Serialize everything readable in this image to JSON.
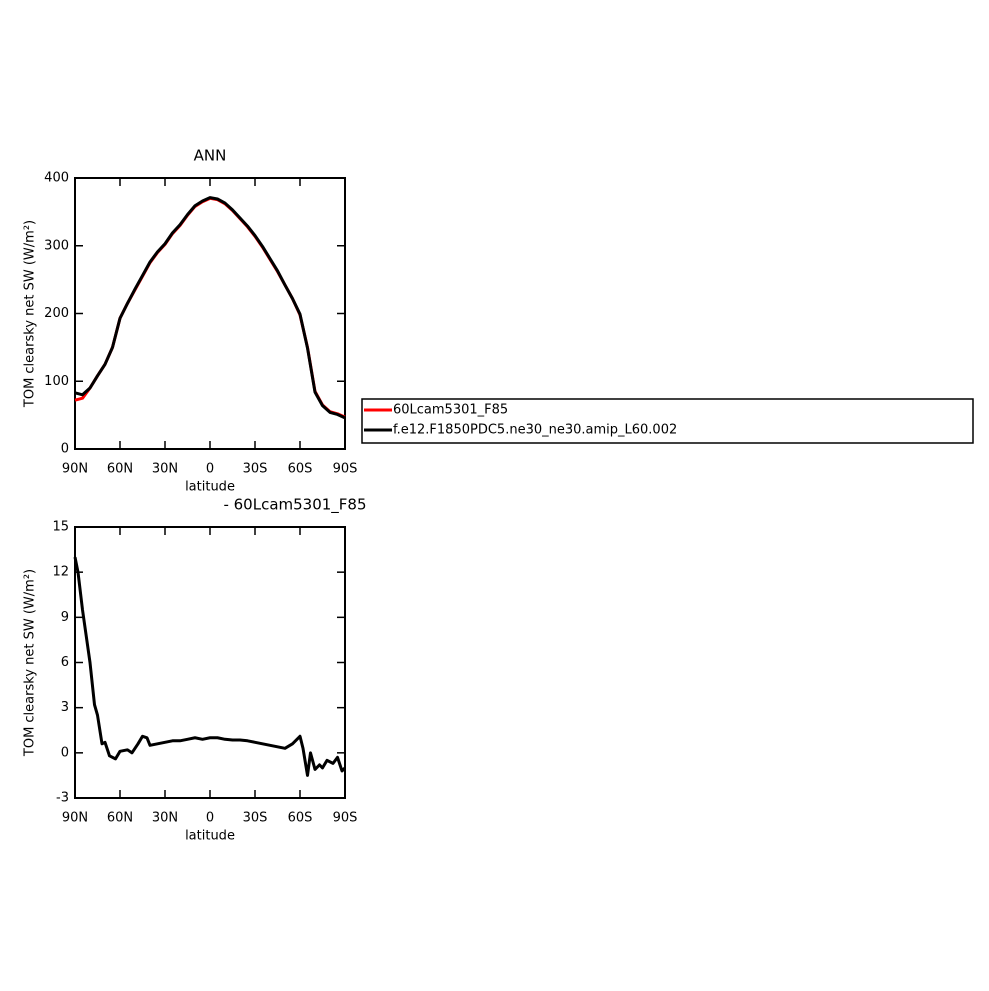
{
  "chart_data": [
    {
      "type": "line",
      "title": "ANN",
      "xlabel": "latitude",
      "ylabel": "TOM clearsky net SW (W/m²)",
      "xlim": [
        90,
        -90
      ],
      "xticks": [
        {
          "value": 90,
          "label": "90N"
        },
        {
          "value": 60,
          "label": "60N"
        },
        {
          "value": 30,
          "label": "30N"
        },
        0,
        {
          "value": -30,
          "label": "30S"
        },
        {
          "value": -60,
          "label": "60S"
        },
        {
          "value": -90,
          "label": "90S"
        }
      ],
      "ylim": [
        0,
        400
      ],
      "yticks": [
        0,
        100,
        200,
        300,
        400
      ],
      "legend": "right",
      "x": [
        90,
        85,
        80,
        75,
        70,
        65,
        60,
        55,
        50,
        45,
        40,
        35,
        30,
        25,
        20,
        15,
        10,
        5,
        0,
        -5,
        -10,
        -15,
        -20,
        -25,
        -30,
        -35,
        -40,
        -45,
        -50,
        -55,
        -60,
        -65,
        -70,
        -75,
        -80,
        -85,
        -90
      ],
      "series": [
        {
          "name": "60Lcam5301_F85",
          "color": "#ff0000",
          "values": [
            72,
            75,
            90,
            108,
            125,
            150,
            193,
            215,
            235,
            255,
            275,
            290,
            302,
            318,
            330,
            345,
            358,
            365,
            370,
            368,
            362,
            352,
            340,
            328,
            314,
            298,
            280,
            262,
            242,
            222,
            198,
            150,
            85,
            65,
            55,
            52,
            47
          ]
        },
        {
          "name": "f.e12.F1850PDC5.ne30_ne30.amip_L60.002",
          "color": "#000000",
          "values": [
            83,
            80,
            90,
            108,
            125,
            150,
            193,
            215,
            236,
            256,
            276,
            291,
            303,
            319,
            331,
            346,
            359,
            366,
            371,
            369,
            363,
            353,
            341,
            329,
            315,
            299,
            281,
            263,
            242,
            222,
            199,
            149,
            84,
            64,
            54,
            51,
            46
          ]
        }
      ]
    },
    {
      "type": "line",
      "title": "- 60Lcam5301_F85",
      "xlabel": "latitude",
      "ylabel": "TOM clearsky net SW (W/m²)",
      "xlim": [
        90,
        -90
      ],
      "xticks": [
        {
          "value": 90,
          "label": "90N"
        },
        {
          "value": 60,
          "label": "60N"
        },
        {
          "value": 30,
          "label": "30N"
        },
        0,
        {
          "value": -30,
          "label": "30S"
        },
        {
          "value": -60,
          "label": "60S"
        },
        {
          "value": -90,
          "label": "90S"
        }
      ],
      "ylim": [
        -3,
        15
      ],
      "yticks": [
        -3,
        0,
        3,
        6,
        9,
        12,
        15
      ],
      "color": "#000000",
      "x": [
        90,
        88,
        85,
        80,
        77,
        75,
        72,
        70,
        67,
        63,
        60,
        55,
        52,
        48,
        45,
        42,
        40,
        35,
        30,
        25,
        20,
        15,
        10,
        5,
        0,
        -5,
        -10,
        -15,
        -20,
        -25,
        -30,
        -35,
        -40,
        -45,
        -50,
        -55,
        -58,
        -60,
        -62,
        -65,
        -67,
        -70,
        -73,
        -75,
        -78,
        -82,
        -85,
        -88,
        -90
      ],
      "values": [
        13,
        12,
        9.5,
        6,
        3.2,
        2.5,
        0.6,
        0.7,
        -0.2,
        -0.4,
        0.1,
        0.2,
        0,
        0.6,
        1.1,
        1.0,
        0.5,
        0.6,
        0.7,
        0.8,
        0.8,
        0.9,
        1.0,
        0.9,
        1.0,
        1.0,
        0.9,
        0.85,
        0.85,
        0.8,
        0.7,
        0.6,
        0.5,
        0.4,
        0.3,
        0.6,
        0.9,
        1.1,
        0.3,
        -1.5,
        0,
        -1.1,
        -0.8,
        -1.0,
        -0.5,
        -0.7,
        -0.3,
        -1.2,
        -1.0
      ]
    }
  ]
}
